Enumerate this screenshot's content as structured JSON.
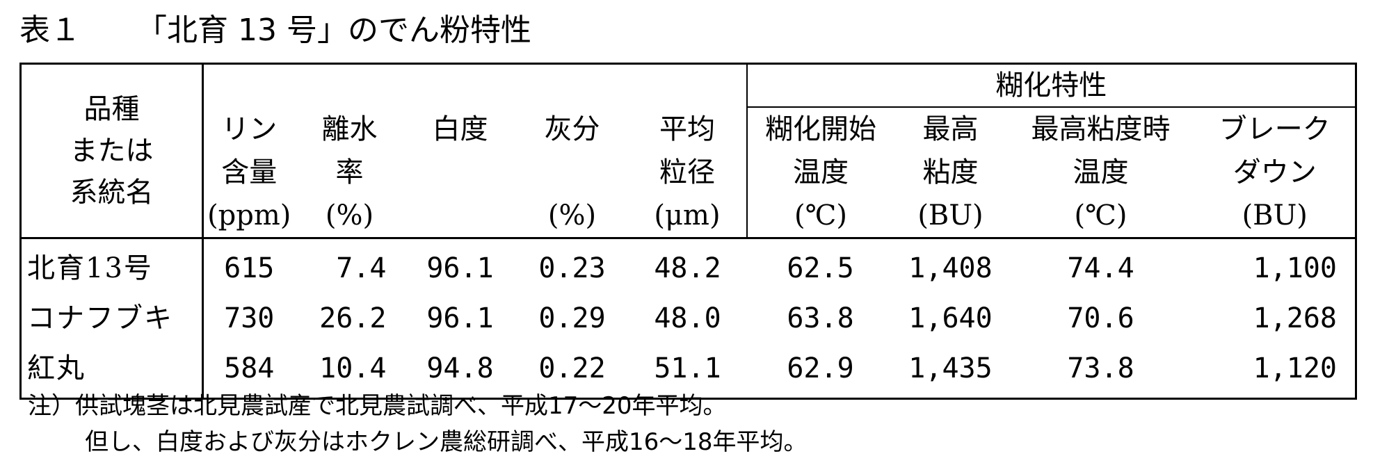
{
  "caption": {
    "number": "表１",
    "title": "「北育 13 号」のでん粉特性"
  },
  "table": {
    "variety_header": [
      "品種",
      "または",
      "系統名"
    ],
    "group_header": "糊化特性",
    "columns": [
      {
        "lines": [
          "リン",
          "含量",
          "(ppm)"
        ]
      },
      {
        "lines": [
          "離水",
          "率",
          "(%)"
        ]
      },
      {
        "lines": [
          "白度",
          "",
          ""
        ]
      },
      {
        "lines": [
          "灰分",
          "",
          "(%)"
        ]
      },
      {
        "lines": [
          "平均",
          "粒径",
          "(μm)"
        ]
      },
      {
        "lines": [
          "糊化開始",
          "温度",
          "(℃)"
        ]
      },
      {
        "lines": [
          "最高",
          "粘度",
          "(BU)"
        ]
      },
      {
        "lines": [
          "最高粘度時",
          "温度",
          "(℃)"
        ]
      },
      {
        "lines": [
          "ブレーク",
          "ダウン",
          "(BU)"
        ]
      }
    ],
    "rows": [
      {
        "name": "北育13号",
        "values": [
          "615",
          "7.4",
          "96.1",
          "0.23",
          "48.2",
          "62.5",
          "1,408",
          "74.4",
          "1,100"
        ]
      },
      {
        "name": "コナフブキ",
        "values": [
          "730",
          "26.2",
          "96.1",
          "0.29",
          "48.0",
          "63.8",
          "1,640",
          "70.6",
          "1,268"
        ]
      },
      {
        "name": "紅丸",
        "values": [
          "584",
          "10.4",
          "94.8",
          "0.22",
          "51.1",
          "62.9",
          "1,435",
          "73.8",
          "1,120"
        ]
      }
    ]
  },
  "notes": [
    "注）供試塊茎は北見農試産で北見農試調べ、平成17～20年平均。",
    "但し、白度および灰分はホクレン農総研調べ、平成16～18年平均。"
  ]
}
